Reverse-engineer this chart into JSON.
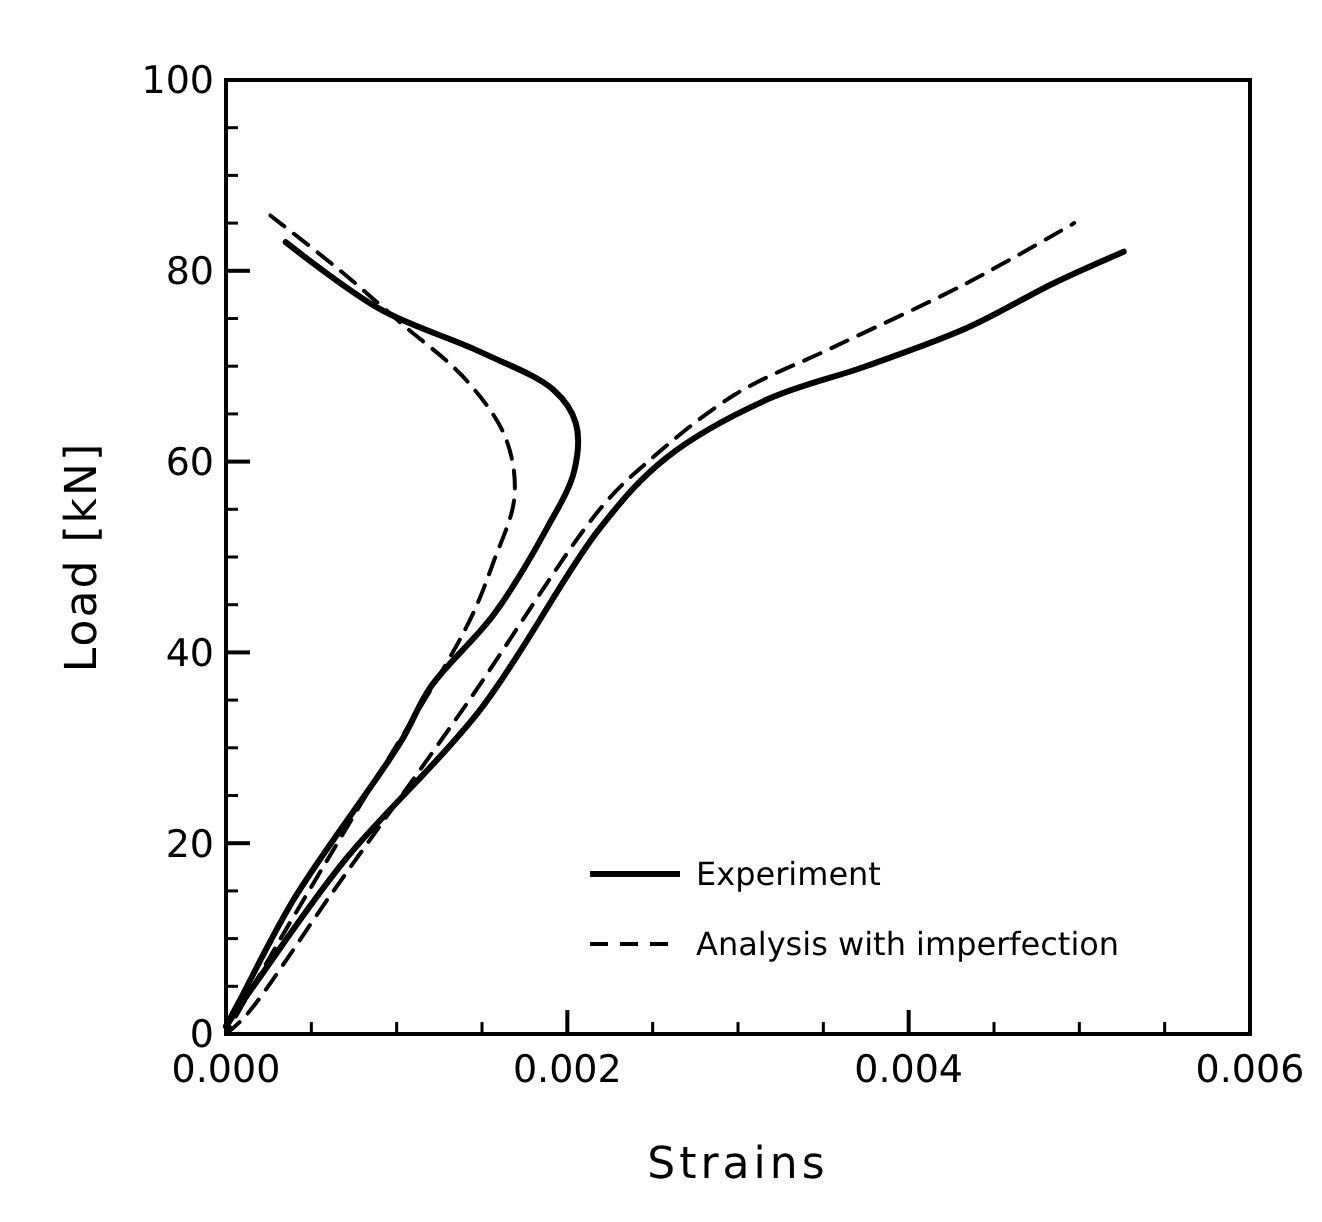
{
  "chart_data": {
    "type": "line",
    "xlabel": "Strains",
    "ylabel": "Load [kN]",
    "xlim": [
      0,
      0.006
    ],
    "ylim": [
      0,
      100
    ],
    "xticks": [
      {
        "value": 0,
        "label": "0.000"
      },
      {
        "value": 0.002,
        "label": "0.002"
      },
      {
        "value": 0.004,
        "label": "0.004"
      },
      {
        "value": 0.006,
        "label": "0.006"
      }
    ],
    "yticks": [
      0,
      20,
      40,
      60,
      80,
      100
    ],
    "legend": "bottom right",
    "grid": false,
    "series": [
      {
        "name": "Experiment",
        "color": "#000000",
        "line_style": "solid",
        "x": [
          0.00035,
          0.0009,
          0.00149,
          0.00192,
          0.00205,
          0.00204,
          0.00188,
          0.00157,
          0.0012,
          0.00102,
          0.0004,
          8e-05,
          0
        ],
        "values": [
          83,
          76,
          71.5,
          67.5,
          64,
          59,
          53,
          44,
          36.4,
          30.5,
          14.2,
          3.5,
          0.8
        ]
      },
      {
        "color": "#000000",
        "line_style": "solid",
        "x": [
          0,
          0.0002,
          0.0007,
          0.00149,
          0.00219,
          0.00258,
          0.00317,
          0.00375,
          0.00434,
          0.00485,
          0.00526
        ],
        "values": [
          0.8,
          6,
          18.3,
          34,
          53,
          60.4,
          66.5,
          70,
          74,
          78.7,
          82
        ]
      },
      {
        "name": "Analysis with imperfection",
        "color": "#000000",
        "line_style": "dashed",
        "x": [
          0.00026,
          0.00067,
          0.00102,
          0.00141,
          0.00164,
          0.00169,
          0.00157,
          0.00141,
          0.00082,
          0.00032,
          0
        ],
        "values": [
          85.8,
          80,
          74.6,
          68.5,
          62.4,
          56.3,
          49.6,
          42.7,
          25,
          10,
          0
        ]
      },
      {
        "color": "#000000",
        "line_style": "dashed",
        "x": [
          0,
          0.00012,
          0.00063,
          0.00141,
          0.00219,
          0.00246,
          0.00298,
          0.00356,
          0.00434,
          0.00497
        ],
        "values": [
          0,
          2,
          15,
          34.6,
          55,
          59.8,
          67,
          72,
          78.7,
          85
        ]
      }
    ]
  }
}
